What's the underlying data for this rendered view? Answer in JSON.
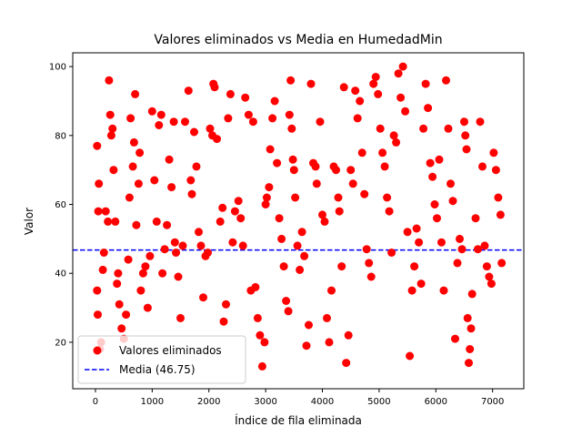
{
  "chart_data": {
    "type": "scatter",
    "title": "Valores eliminados vs Media en HumedadMin",
    "xlabel": "Índice de fila eliminada",
    "ylabel": "Valor",
    "xlim": [
      -400,
      7550
    ],
    "ylim": [
      6.5,
      104
    ],
    "xticks": [
      0,
      1000,
      2000,
      3000,
      4000,
      5000,
      6000,
      7000
    ],
    "yticks": [
      20,
      40,
      60,
      80,
      100
    ],
    "grid": false,
    "legend_position": "lower-left",
    "mean_line": {
      "value": 46.75,
      "label": "Media (46.75)",
      "color": "#0000ff",
      "style": "dashed"
    },
    "series": [
      {
        "name": "Valores eliminados",
        "color": "#ff0000",
        "marker": "circle",
        "points": [
          [
            30,
            77
          ],
          [
            60,
            66
          ],
          [
            50,
            58
          ],
          [
            30,
            35
          ],
          [
            40,
            28
          ],
          [
            80,
            18
          ],
          [
            100,
            20
          ],
          [
            130,
            41
          ],
          [
            150,
            46
          ],
          [
            180,
            58
          ],
          [
            220,
            55
          ],
          [
            240,
            96
          ],
          [
            260,
            86
          ],
          [
            280,
            80
          ],
          [
            300,
            82
          ],
          [
            320,
            70
          ],
          [
            350,
            55
          ],
          [
            380,
            37
          ],
          [
            400,
            40
          ],
          [
            420,
            31
          ],
          [
            460,
            24
          ],
          [
            500,
            21
          ],
          [
            540,
            28
          ],
          [
            580,
            44
          ],
          [
            600,
            62
          ],
          [
            620,
            85
          ],
          [
            660,
            71
          ],
          [
            680,
            78
          ],
          [
            700,
            92
          ],
          [
            720,
            54
          ],
          [
            760,
            66
          ],
          [
            780,
            75
          ],
          [
            800,
            35
          ],
          [
            840,
            40
          ],
          [
            880,
            42
          ],
          [
            920,
            30
          ],
          [
            960,
            45
          ],
          [
            1000,
            87
          ],
          [
            1040,
            67
          ],
          [
            1080,
            55
          ],
          [
            1120,
            83
          ],
          [
            1160,
            86
          ],
          [
            1180,
            40
          ],
          [
            1220,
            47
          ],
          [
            1260,
            54
          ],
          [
            1300,
            73
          ],
          [
            1340,
            65
          ],
          [
            1380,
            84
          ],
          [
            1400,
            49
          ],
          [
            1420,
            46
          ],
          [
            1460,
            39
          ],
          [
            1500,
            27
          ],
          [
            1540,
            48
          ],
          [
            1580,
            84
          ],
          [
            1640,
            93
          ],
          [
            1680,
            67
          ],
          [
            1700,
            63
          ],
          [
            1740,
            81
          ],
          [
            1780,
            71
          ],
          [
            1820,
            52
          ],
          [
            1860,
            48
          ],
          [
            1900,
            33
          ],
          [
            1940,
            45
          ],
          [
            1980,
            46
          ],
          [
            2020,
            82
          ],
          [
            2060,
            80
          ],
          [
            2080,
            95
          ],
          [
            2100,
            94
          ],
          [
            2140,
            79
          ],
          [
            2200,
            55
          ],
          [
            2240,
            59
          ],
          [
            2260,
            26
          ],
          [
            2300,
            31
          ],
          [
            2340,
            85
          ],
          [
            2380,
            92
          ],
          [
            2420,
            49
          ],
          [
            2460,
            58
          ],
          [
            2520,
            61
          ],
          [
            2560,
            56
          ],
          [
            2600,
            48
          ],
          [
            2640,
            91
          ],
          [
            2700,
            86
          ],
          [
            2740,
            35
          ],
          [
            2780,
            84
          ],
          [
            2820,
            36
          ],
          [
            2860,
            27
          ],
          [
            2900,
            22
          ],
          [
            2940,
            13
          ],
          [
            2980,
            20
          ],
          [
            3000,
            60
          ],
          [
            3020,
            62
          ],
          [
            3060,
            65
          ],
          [
            3080,
            76
          ],
          [
            3120,
            85
          ],
          [
            3160,
            90
          ],
          [
            3200,
            72
          ],
          [
            3240,
            56
          ],
          [
            3280,
            50
          ],
          [
            3320,
            42
          ],
          [
            3360,
            32
          ],
          [
            3400,
            29
          ],
          [
            3420,
            86
          ],
          [
            3440,
            96
          ],
          [
            3460,
            82
          ],
          [
            3480,
            73
          ],
          [
            3500,
            70
          ],
          [
            3520,
            62
          ],
          [
            3560,
            48
          ],
          [
            3600,
            41
          ],
          [
            3640,
            52
          ],
          [
            3680,
            45
          ],
          [
            3720,
            19
          ],
          [
            3760,
            25
          ],
          [
            3800,
            95
          ],
          [
            3840,
            72
          ],
          [
            3880,
            71
          ],
          [
            3900,
            66
          ],
          [
            3960,
            84
          ],
          [
            4000,
            57
          ],
          [
            4040,
            55
          ],
          [
            4080,
            27
          ],
          [
            4120,
            20
          ],
          [
            4160,
            35
          ],
          [
            4200,
            71
          ],
          [
            4240,
            70
          ],
          [
            4280,
            62
          ],
          [
            4300,
            58
          ],
          [
            4340,
            42
          ],
          [
            4380,
            94
          ],
          [
            4420,
            14
          ],
          [
            4460,
            22
          ],
          [
            4500,
            70
          ],
          [
            4540,
            66
          ],
          [
            4580,
            93
          ],
          [
            4620,
            85
          ],
          [
            4660,
            90
          ],
          [
            4700,
            75
          ],
          [
            4740,
            63
          ],
          [
            4780,
            47
          ],
          [
            4820,
            43
          ],
          [
            4860,
            39
          ],
          [
            4900,
            95
          ],
          [
            4940,
            97
          ],
          [
            4980,
            92
          ],
          [
            5020,
            82
          ],
          [
            5060,
            75
          ],
          [
            5100,
            71
          ],
          [
            5140,
            62
          ],
          [
            5180,
            58
          ],
          [
            5220,
            46
          ],
          [
            5260,
            80
          ],
          [
            5300,
            78
          ],
          [
            5340,
            98
          ],
          [
            5380,
            91
          ],
          [
            5420,
            100
          ],
          [
            5460,
            87
          ],
          [
            5500,
            52
          ],
          [
            5540,
            16
          ],
          [
            5580,
            35
          ],
          [
            5620,
            42
          ],
          [
            5660,
            53
          ],
          [
            5700,
            49
          ],
          [
            5740,
            37
          ],
          [
            5780,
            82
          ],
          [
            5820,
            95
          ],
          [
            5860,
            88
          ],
          [
            5900,
            72
          ],
          [
            5940,
            68
          ],
          [
            5980,
            60
          ],
          [
            6020,
            56
          ],
          [
            6060,
            73
          ],
          [
            6100,
            49
          ],
          [
            6140,
            35
          ],
          [
            6180,
            96
          ],
          [
            6220,
            82
          ],
          [
            6260,
            66
          ],
          [
            6300,
            61
          ],
          [
            6340,
            21
          ],
          [
            6380,
            43
          ],
          [
            6420,
            50
          ],
          [
            6460,
            47
          ],
          [
            6500,
            84
          ],
          [
            6520,
            80
          ],
          [
            6540,
            76
          ],
          [
            6560,
            27
          ],
          [
            6580,
            14
          ],
          [
            6600,
            18
          ],
          [
            6620,
            24
          ],
          [
            6640,
            34
          ],
          [
            6700,
            56
          ],
          [
            6740,
            47
          ],
          [
            6780,
            84
          ],
          [
            6820,
            71
          ],
          [
            6860,
            48
          ],
          [
            6900,
            42
          ],
          [
            6940,
            39
          ],
          [
            6980,
            37
          ],
          [
            7020,
            75
          ],
          [
            7060,
            70
          ],
          [
            7100,
            62
          ],
          [
            7140,
            57
          ],
          [
            7160,
            43
          ]
        ]
      }
    ]
  }
}
